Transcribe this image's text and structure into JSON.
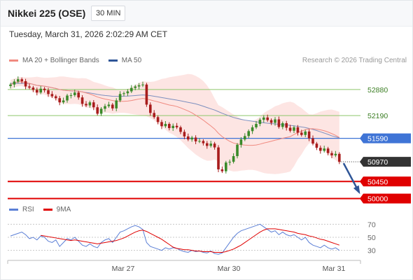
{
  "header": {
    "title": "Nikkei 225 (OSE)",
    "timeframe": "30 MIN"
  },
  "datetime": "Tuesday, March 31, 2026 2:02:29 AM CET",
  "legend": {
    "items": [
      {
        "label": "MA 20 + Bollinger Bands",
        "color": "#f08a80"
      },
      {
        "label": "MA 50",
        "color": "#2f5597"
      }
    ],
    "credit": "Research © 2026 Trading Central"
  },
  "rsi_legend": {
    "items": [
      {
        "label": "RSI",
        "color": "#5b7fd6"
      },
      {
        "label": "9MA",
        "color": "#e00000"
      }
    ]
  },
  "colors": {
    "up": "#3a8a2a",
    "down": "#a81c1c",
    "bb_fill": "#fde0de",
    "ma20": "#f08a80",
    "ma50": "#7d8fbf",
    "resistance": "#8ec76a",
    "pivot": "#3f74d6",
    "support": "#e00000",
    "last": "#333333",
    "rsi": "#5b7fd6",
    "rsi_ma": "#e00000",
    "arrow": "#2f5597"
  },
  "chart_data": [
    {
      "type": "candlestick",
      "ylim": [
        49900,
        53450
      ],
      "x_ticks": [
        "Mar 27",
        "Mar 30",
        "Mar 31"
      ],
      "levels": [
        {
          "label": "52880",
          "value": 52880,
          "kind": "resistance"
        },
        {
          "label": "52190",
          "value": 52190,
          "kind": "resistance"
        },
        {
          "label": "51590",
          "value": 51590,
          "kind": "pivot"
        },
        {
          "label": "50970",
          "value": 50970,
          "kind": "last"
        },
        {
          "label": "50450",
          "value": 50450,
          "kind": "support"
        },
        {
          "label": "50000",
          "value": 50000,
          "kind": "support"
        }
      ],
      "forecast_arrow": {
        "from": 50970,
        "to": 50090
      },
      "close": [
        53010,
        53090,
        53150,
        53100,
        52960,
        52930,
        52870,
        52800,
        52900,
        52860,
        52760,
        52700,
        52650,
        52540,
        52590,
        52720,
        52730,
        52800,
        52670,
        52500,
        52460,
        52540,
        52410,
        52240,
        52370,
        52440,
        52480,
        52380,
        52590,
        52760,
        52780,
        52830,
        52920,
        52960,
        52990,
        53010,
        52480,
        52260,
        52150,
        52020,
        51910,
        51970,
        51860,
        51920,
        51880,
        51760,
        51640,
        51560,
        51610,
        51510,
        51520,
        51460,
        51390,
        51450,
        51350,
        50770,
        50720,
        50950,
        50970,
        51120,
        51420,
        51560,
        51650,
        51780,
        51880,
        51970,
        52080,
        52140,
        52070,
        52000,
        52090,
        51890,
        51990,
        51870,
        51790,
        51880,
        51740,
        51680,
        51770,
        51590,
        51450,
        51340,
        51260,
        51320,
        51200,
        51140,
        51180,
        50970
      ]
    },
    {
      "type": "line",
      "name": "RSI",
      "ylim": [
        20,
        80
      ],
      "y_ticks": [
        "70",
        "50",
        "30"
      ],
      "series": [
        {
          "name": "RSI",
          "values": [
            52,
            54,
            56,
            58,
            54,
            48,
            50,
            46,
            52,
            50,
            44,
            42,
            46,
            36,
            42,
            48,
            46,
            50,
            44,
            38,
            36,
            40,
            36,
            34,
            42,
            46,
            48,
            42,
            50,
            58,
            60,
            63,
            66,
            68,
            66,
            62,
            42,
            36,
            34,
            32,
            30,
            34,
            32,
            34,
            33,
            30,
            28,
            27,
            30,
            28,
            29,
            27,
            26,
            29,
            25,
            24,
            26,
            34,
            42,
            50,
            56,
            60,
            62,
            64,
            66,
            68,
            70,
            66,
            62,
            58,
            60,
            54,
            58,
            54,
            52,
            54,
            50,
            46,
            50,
            42,
            38,
            36,
            34,
            38,
            34,
            32,
            34,
            30
          ]
        },
        {
          "name": "9MA",
          "values": [
            null,
            null,
            null,
            null,
            null,
            null,
            null,
            null,
            53,
            52,
            51,
            50,
            49,
            48,
            47,
            46,
            45,
            46,
            45,
            44,
            43,
            42,
            41,
            40,
            41,
            42,
            43,
            44,
            45,
            47,
            49,
            52,
            55,
            58,
            60,
            61,
            59,
            56,
            53,
            50,
            47,
            43,
            39,
            35,
            33,
            32,
            31,
            31,
            30,
            29,
            29,
            28,
            28,
            28,
            27,
            27,
            27,
            28,
            30,
            32,
            35,
            38,
            42,
            46,
            50,
            54,
            58,
            61,
            63,
            63,
            63,
            62,
            61,
            60,
            59,
            58,
            56,
            55,
            54,
            52,
            51,
            49,
            47,
            46,
            44,
            42,
            40,
            38
          ]
        }
      ]
    }
  ]
}
